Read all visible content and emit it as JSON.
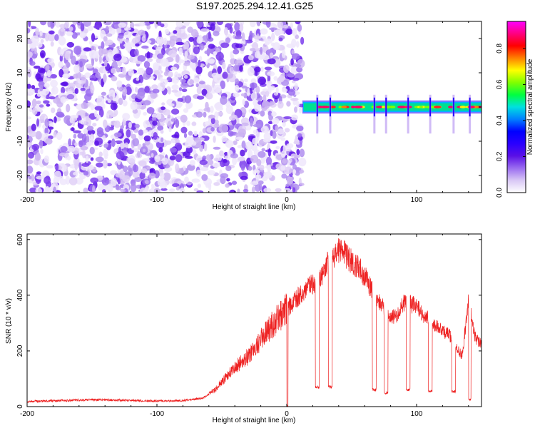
{
  "title": "S197.2025.294.12.41.G25",
  "chart_data": [
    {
      "type": "heatmap",
      "name": "spectrogram",
      "xlabel": "Height of straight line (km)",
      "ylabel": "Frequency (Hz)",
      "xlim": [
        -200,
        150
      ],
      "ylim": [
        -25,
        25
      ],
      "xticks": [
        -200,
        -100,
        0,
        100
      ],
      "yticks": [
        -20,
        -10,
        0,
        10,
        20
      ],
      "xtick_labels": [
        "-200",
        "-100",
        "0",
        "100"
      ],
      "ytick_labels": [
        "-20",
        "-10",
        "0",
        "10",
        "20"
      ],
      "noise_region_x": [
        -200,
        12
      ],
      "signal_band_hz": [
        -1.5,
        1.5
      ],
      "signal_start_km": 12,
      "colorbar": {
        "label": "Normalized spectral amplitude",
        "range": [
          0.0,
          0.95
        ],
        "ticks": [
          0.0,
          0.2,
          0.4,
          0.6,
          0.8
        ],
        "tick_labels": [
          "0.0",
          "0.2",
          "0.4",
          "0.6",
          "0.8"
        ],
        "colors": [
          "#ffffff",
          "#d9c8f5",
          "#9a6cf0",
          "#5a10e6",
          "#2a00ff",
          "#0000ff",
          "#0080ff",
          "#00e0e0",
          "#00ff40",
          "#80ff00",
          "#ffff00",
          "#ff8000",
          "#ff0000",
          "#ff0080",
          "#ff00ff"
        ]
      }
    },
    {
      "type": "line",
      "name": "snr",
      "xlabel": "Height of straight line (km)",
      "ylabel": "SNR (10 * v/v)",
      "xlim": [
        -200,
        150
      ],
      "ylim": [
        0,
        620
      ],
      "xticks": [
        -200,
        -100,
        0,
        100
      ],
      "yticks": [
        0,
        200,
        400,
        600
      ],
      "xtick_labels": [
        "-200",
        "-100",
        "0",
        "100"
      ],
      "ytick_labels": [
        "0",
        "200",
        "400",
        "600"
      ],
      "color": "#ee2222",
      "envelope": {
        "x": [
          -200,
          -150,
          -100,
          -80,
          -65,
          -60,
          -55,
          -50,
          -40,
          -30,
          -20,
          -10,
          0,
          10,
          20,
          25,
          30,
          35,
          40,
          45,
          50,
          55,
          60,
          65,
          70,
          75,
          80,
          85,
          90,
          95,
          100,
          105,
          110,
          115,
          120,
          125,
          130,
          135,
          140,
          145,
          150
        ],
        "y": [
          18,
          25,
          20,
          22,
          30,
          45,
          60,
          90,
          140,
          180,
          240,
          300,
          350,
          400,
          440,
          460,
          500,
          540,
          560,
          550,
          520,
          500,
          470,
          420,
          380,
          350,
          320,
          330,
          370,
          370,
          360,
          330,
          310,
          290,
          270,
          260,
          220,
          180,
          380,
          250,
          220
        ]
      },
      "dropouts": [
        {
          "x": [
            0,
            1
          ],
          "y": 0
        },
        {
          "x": [
            22,
            25
          ],
          "y": 70
        },
        {
          "x": [
            32,
            35
          ],
          "y": 70
        },
        {
          "x": [
            66,
            69
          ],
          "y": 60
        },
        {
          "x": [
            75,
            78
          ],
          "y": 50
        },
        {
          "x": [
            92,
            95
          ],
          "y": 60
        },
        {
          "x": [
            109,
            112
          ],
          "y": 55
        },
        {
          "x": [
            127,
            130
          ],
          "y": 55
        },
        {
          "x": [
            140,
            142
          ],
          "y": 25
        }
      ]
    }
  ]
}
